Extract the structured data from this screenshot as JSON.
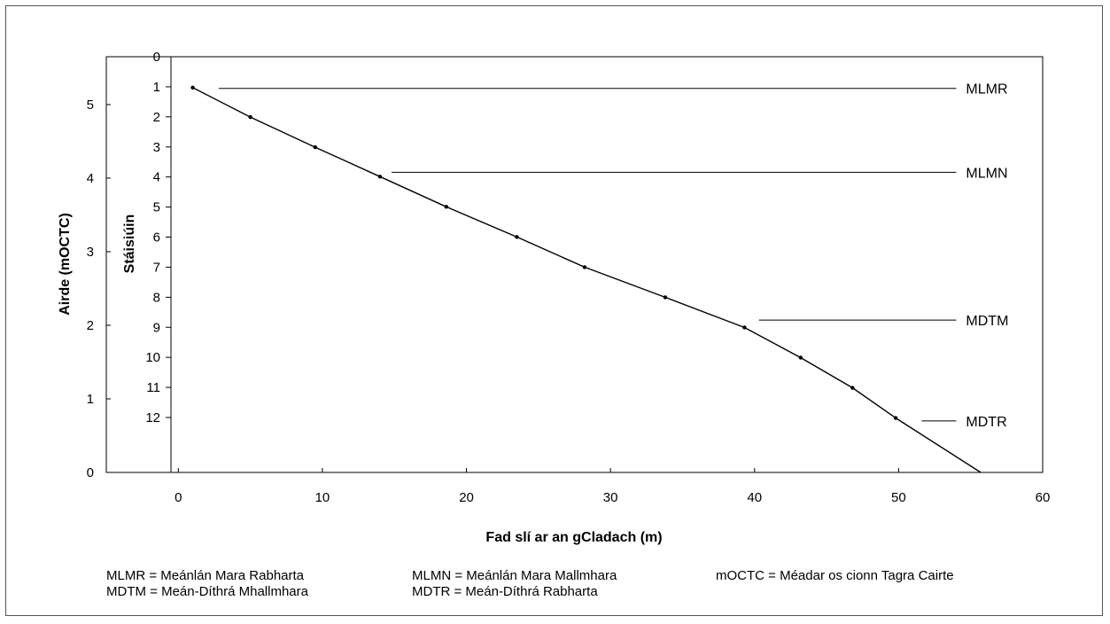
{
  "chart_data": {
    "type": "line",
    "xlabel": "Fad slí ar an gCladach (m)",
    "ylabel": "Airde (mOCTC)",
    "station_axis_label": "Stáisiúin",
    "xlim": [
      -5,
      60
    ],
    "ylim": [
      0,
      5.65
    ],
    "x_ticks": [
      0,
      10,
      20,
      30,
      40,
      50,
      60
    ],
    "y_ticks": [
      0,
      1,
      2,
      3,
      4,
      5
    ],
    "station_ticks": [
      "0",
      "1",
      "2",
      "3",
      "4",
      "5",
      "6",
      "7",
      "8",
      "9",
      "10",
      "11",
      "12"
    ],
    "profile": {
      "x": [
        1.0,
        5.0,
        9.5,
        14.0,
        18.6,
        23.5,
        28.2,
        33.8,
        39.3,
        43.2,
        46.8,
        49.8,
        55.7
      ],
      "y": [
        5.23,
        4.83,
        4.42,
        4.02,
        3.61,
        3.2,
        2.79,
        2.38,
        1.97,
        1.56,
        1.15,
        0.74,
        0.0
      ]
    },
    "stations": {
      "x": [
        1.0,
        5.0,
        9.5,
        14.0,
        18.6,
        23.5,
        28.2,
        33.8,
        39.3,
        43.2,
        46.8,
        49.8
      ],
      "y": [
        5.23,
        4.83,
        4.42,
        4.02,
        3.61,
        3.2,
        2.79,
        2.38,
        1.97,
        1.56,
        1.15,
        0.74
      ]
    },
    "levels": [
      {
        "label": "MLMR",
        "y": 5.22,
        "x_start": 2.8,
        "x_end": 54.0
      },
      {
        "label": "MLMN",
        "y": 4.08,
        "x_start": 14.8,
        "x_end": 54.0
      },
      {
        "label": "MDTM",
        "y": 2.07,
        "x_start": 40.3,
        "x_end": 54.0
      },
      {
        "label": "MDTR",
        "y": 0.7,
        "x_start": 51.6,
        "x_end": 54.0
      }
    ]
  },
  "legend": {
    "col1": [
      "MLMR = Meánlán Mara Rabharta",
      "MDTM = Meán-Díthrá Mhallmhara"
    ],
    "col2": [
      "MLMN = Meánlán Mara Mallmhara",
      "MDTR = Meán-Díthrá Rabharta"
    ],
    "col3": [
      "mOCTC = Méadar os cionn Tagra Cairte"
    ]
  }
}
